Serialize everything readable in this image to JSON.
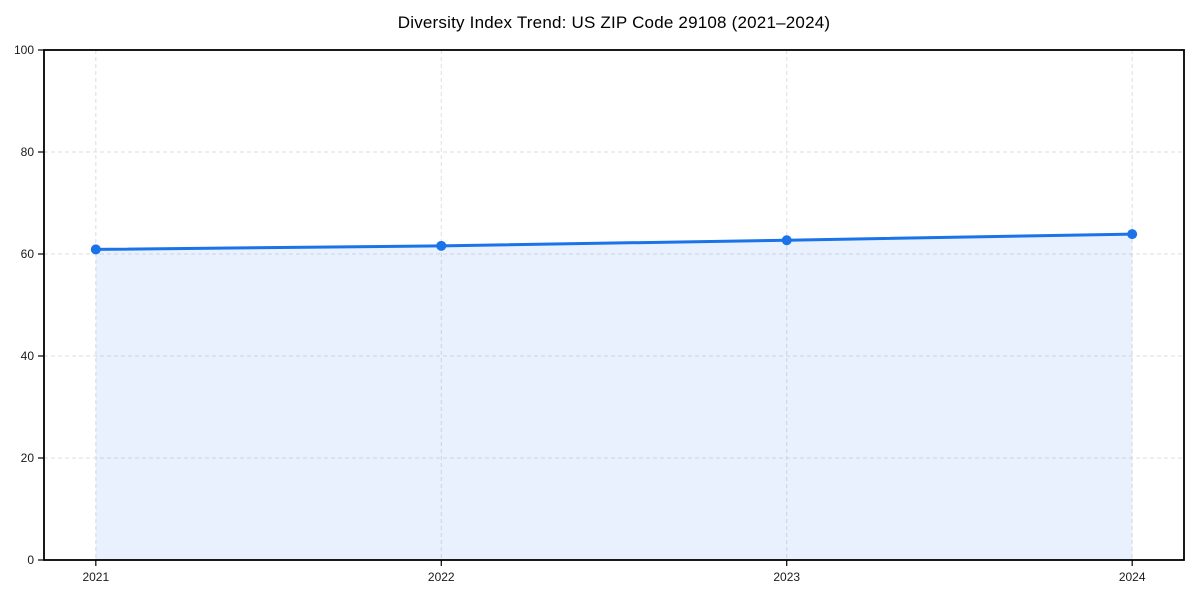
{
  "chart_data": {
    "type": "area",
    "title": "Diversity Index Trend: US ZIP Code 29108 (2021–2024)",
    "x": [
      2021,
      2022,
      2023,
      2024
    ],
    "series": [
      {
        "name": "Diversity Index",
        "values": [
          60.9,
          61.6,
          62.7,
          63.9
        ]
      }
    ],
    "xlabel": "",
    "ylabel": "",
    "xlim": [
      2020.85,
      2024.15
    ],
    "ylim": [
      0,
      100
    ],
    "xticks": [
      2021,
      2022,
      2023,
      2024
    ],
    "yticks": [
      0,
      20,
      40,
      60,
      80,
      100
    ],
    "grid": true,
    "grid_style": "dashed",
    "legend": "none",
    "colors": {
      "line": "#1a73e8",
      "fill": "#1a73e8",
      "fill_opacity": 0.1,
      "grid": "#dedede",
      "spine": "#000000",
      "text": "#1a1a1a"
    },
    "marker": "circle",
    "marker_radius": 5,
    "line_width": 3
  }
}
